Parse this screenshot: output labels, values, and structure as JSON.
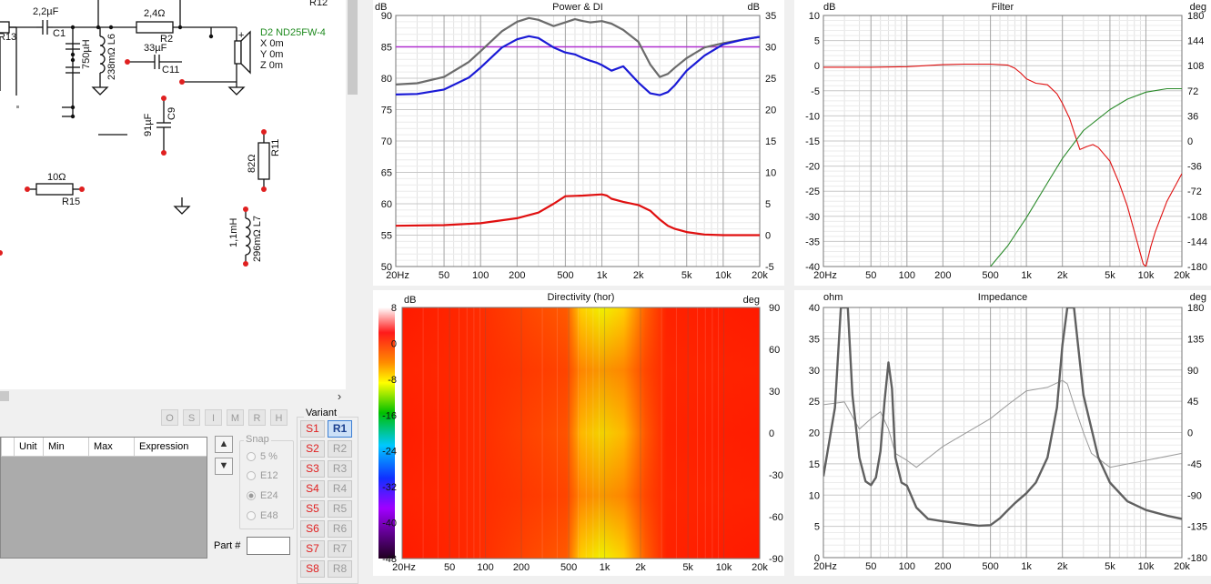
{
  "schematic": {
    "components": [
      {
        "id": "c1",
        "value": "2,2µF",
        "ref": "C1"
      },
      {
        "id": "r2",
        "value": "2,4Ω",
        "ref": "R2"
      },
      {
        "id": "l6",
        "value": "750µH",
        "ref": "238mΩ L6"
      },
      {
        "id": "c11",
        "value": "33µF",
        "ref": "C11"
      },
      {
        "id": "c9",
        "value": "91µF",
        "ref": "C9"
      },
      {
        "id": "r11",
        "value": "82Ω",
        "ref": "R11"
      },
      {
        "id": "r15",
        "value": "10Ω",
        "ref": "R15"
      },
      {
        "id": "l7",
        "value": "1,1mH",
        "ref": "296mΩ L7"
      }
    ],
    "r13_label": "R13",
    "r12_label": "R12",
    "driver": {
      "name": "D2 ND25FW-4",
      "x": "X 0m",
      "y": "Y 0m",
      "z": "Z 0m",
      "plus": "+"
    }
  },
  "scroll": {
    "chevron": "›"
  },
  "toolbar": {
    "buttons": [
      "O",
      "S",
      "I",
      "M",
      "R",
      "H"
    ]
  },
  "params_table": {
    "columns": [
      "Unit",
      "Min",
      "Max",
      "Expression"
    ]
  },
  "snap": {
    "title": "Snap",
    "options": [
      {
        "label": "5 %",
        "selected": false
      },
      {
        "label": "E12",
        "selected": false
      },
      {
        "label": "E24",
        "selected": true
      },
      {
        "label": "E48",
        "selected": false
      }
    ]
  },
  "part": {
    "label": "Part #",
    "value": ""
  },
  "variant": {
    "title": "Variant",
    "s_buttons": [
      "S1",
      "S2",
      "S3",
      "S4",
      "S5",
      "S6",
      "S7",
      "S8"
    ],
    "r_buttons": [
      "R1",
      "R2",
      "R3",
      "R4",
      "R5",
      "R6",
      "R7",
      "R8"
    ],
    "active": "R1"
  },
  "colors": {
    "accent_red": "#e02020",
    "active_blue": "#3c7fd4"
  },
  "graphs": {
    "freq_ticks": [
      20,
      50,
      100,
      200,
      500,
      1000,
      2000,
      5000,
      10000,
      20000
    ],
    "freq_labels": [
      "20Hz",
      "50",
      "100",
      "200",
      "500",
      "1k",
      "2k",
      "5k",
      "10k",
      "20k"
    ],
    "power": {
      "title": "Power & DI",
      "left_unit": "dB",
      "right_unit": "dB",
      "left_ticks": [
        "90",
        "85",
        "80",
        "75",
        "70",
        "65",
        "60",
        "55",
        "50"
      ],
      "right_ticks": [
        "35",
        "30",
        "25",
        "20",
        "15",
        "10",
        "5",
        "0",
        "-5"
      ]
    },
    "filter": {
      "title": "Filter",
      "left_unit": "dB",
      "right_unit": "deg",
      "left_ticks": [
        "10",
        "5",
        "0",
        "-5",
        "-10",
        "-15",
        "-20",
        "-25",
        "-30",
        "-35",
        "-40"
      ],
      "right_ticks": [
        "180",
        "144",
        "108",
        "72",
        "36",
        "0",
        "-36",
        "-72",
        "-108",
        "-144",
        "-180"
      ]
    },
    "directivity": {
      "title": "Directivity (hor)",
      "left_unit": "dB",
      "right_unit": "deg",
      "scale_ticks": [
        "8",
        "0",
        "-8",
        "-16",
        "-24",
        "-32",
        "-40",
        "-48"
      ],
      "right_ticks": [
        "90",
        "60",
        "30",
        "0",
        "-30",
        "-60",
        "-90"
      ]
    },
    "impedance": {
      "title": "Impedance",
      "left_unit": "ohm",
      "right_unit": "deg",
      "left_ticks": [
        "40",
        "35",
        "30",
        "25",
        "20",
        "15",
        "10",
        "5",
        "0"
      ],
      "right_ticks": [
        "180",
        "135",
        "90",
        "45",
        "0",
        "-45",
        "-90",
        "-135",
        "-180"
      ]
    }
  },
  "chart_data": [
    {
      "type": "line",
      "title": "Power & DI",
      "xlabel": "",
      "ylabel": "dB",
      "xscale": "log",
      "xlim": [
        20,
        20000
      ],
      "ylim": [
        50,
        90
      ],
      "y2lim": [
        -5,
        35
      ],
      "grid": true,
      "series": [
        {
          "color": "#6b6b6b",
          "x": [
            20,
            30,
            50,
            80,
            100,
            150,
            200,
            250,
            300,
            400,
            500,
            600,
            700,
            800,
            1000,
            1200,
            1500,
            2000,
            2500,
            3000,
            3500,
            4000,
            5000,
            7000,
            10000,
            15000,
            20000
          ],
          "y": [
            79,
            79.2,
            80.2,
            82.6,
            84.3,
            87.5,
            89,
            89.6,
            89.3,
            88.3,
            88.9,
            89.4,
            89.1,
            88.9,
            89.1,
            88.7,
            87.7,
            85.8,
            82.2,
            80.2,
            80.7,
            81.7,
            83.2,
            84.9,
            85.6,
            86.2,
            86.6
          ]
        },
        {
          "color": "#1a1ad6",
          "x": [
            20,
            30,
            50,
            80,
            100,
            150,
            200,
            250,
            300,
            400,
            500,
            600,
            700,
            800,
            900,
            1000,
            1200,
            1500,
            2000,
            2500,
            3000,
            3500,
            4000,
            5000,
            7000,
            10000,
            15000,
            20000
          ],
          "y": [
            77.4,
            77.5,
            78.2,
            80.1,
            81.7,
            84.9,
            86.2,
            86.7,
            86.4,
            84.9,
            84.1,
            83.8,
            83.2,
            82.8,
            82.5,
            82.1,
            81.2,
            81.9,
            79.3,
            77.6,
            77.3,
            77.8,
            78.9,
            81.2,
            83.6,
            85.4,
            86.2,
            86.6
          ]
        },
        {
          "color": "#e01010",
          "axis": "right",
          "x": [
            20,
            50,
            100,
            200,
            300,
            400,
            500,
            700,
            1000,
            1100,
            1200,
            1500,
            2000,
            2500,
            3000,
            3500,
            4000,
            5000,
            7000,
            10000,
            20000
          ],
          "y": [
            1.5,
            1.6,
            1.9,
            2.7,
            3.6,
            5,
            6.2,
            6.3,
            6.5,
            6.3,
            5.8,
            5.3,
            4.8,
            3.9,
            2.5,
            1.5,
            1,
            0.5,
            0.1,
            0,
            0
          ]
        },
        {
          "color": "#b030d0",
          "x": [
            20,
            20000
          ],
          "y": [
            85,
            85
          ]
        }
      ]
    },
    {
      "type": "line",
      "title": "Filter",
      "xlabel": "",
      "ylabel": "dB",
      "xscale": "log",
      "xlim": [
        20,
        20000
      ],
      "ylim": [
        -40,
        10
      ],
      "y2lim": [
        -180,
        180
      ],
      "grid": true,
      "series": [
        {
          "color": "#e01010",
          "x": [
            20,
            50,
            100,
            200,
            300,
            500,
            700,
            800,
            900,
            1000,
            1200,
            1500,
            1800,
            2000,
            2300,
            2500,
            2800,
            3200,
            3600,
            4000,
            5000,
            6000,
            7000,
            8000,
            9000,
            9500,
            10000,
            10500,
            11000,
            12000,
            15000,
            20000
          ],
          "y": [
            -0.3,
            -0.3,
            -0.2,
            0.2,
            0.3,
            0.3,
            0.1,
            -0.5,
            -1.5,
            -2.6,
            -3.5,
            -3.8,
            -5.6,
            -7.5,
            -10.5,
            -13.2,
            -16.7,
            -16.1,
            -15.7,
            -16.3,
            -19,
            -23.5,
            -28,
            -33,
            -37.5,
            -39.5,
            -40,
            -38,
            -36,
            -33,
            -27,
            -21.5
          ]
        },
        {
          "color": "#2a8a2a",
          "axis": "right",
          "x": [
            500,
            700,
            1000,
            1500,
            2000,
            3000,
            5000,
            7000,
            10000,
            15000,
            20000
          ],
          "y": [
            -180,
            -150,
            -110,
            -60,
            -25,
            15,
            45,
            60,
            70,
            75,
            75
          ]
        }
      ]
    },
    {
      "type": "heatmap",
      "title": "Directivity (hor)",
      "xlabel": "",
      "ylabel": "dB",
      "xscale": "log",
      "xlim": [
        20,
        20000
      ],
      "ylim": [
        -90,
        90
      ],
      "zlim": [
        -48,
        8
      ]
    },
    {
      "type": "line",
      "title": "Impedance",
      "xlabel": "",
      "ylabel": "ohm",
      "xscale": "log",
      "xlim": [
        20,
        20000
      ],
      "ylim": [
        0,
        40
      ],
      "y2lim": [
        -180,
        180
      ],
      "grid": true,
      "series": [
        {
          "color": "#606060",
          "x": [
            20,
            25,
            28,
            32,
            35,
            40,
            45,
            50,
            55,
            60,
            65,
            70,
            75,
            80,
            90,
            100,
            120,
            150,
            200,
            300,
            400,
            500,
            600,
            700,
            800,
            1000,
            1200,
            1500,
            1800,
            2000,
            2200,
            2500,
            3000,
            4000,
            5000,
            7000,
            10000,
            15000,
            20000
          ],
          "y": [
            13,
            24,
            40,
            40,
            26,
            16,
            12.2,
            11.6,
            12.8,
            17,
            25,
            31.2,
            27,
            16,
            12,
            11.5,
            8,
            6.2,
            5.8,
            5.4,
            5.1,
            5.2,
            6.3,
            7.6,
            8.7,
            10.3,
            12,
            16,
            24,
            34,
            40,
            40,
            26,
            16,
            12,
            9,
            7.6,
            6.7,
            6.2
          ]
        },
        {
          "color": "#9a9a9a",
          "axis": "right",
          "x": [
            20,
            30,
            40,
            50,
            60,
            70,
            80,
            100,
            120,
            200,
            500,
            700,
            1000,
            1500,
            2000,
            2200,
            2500,
            3000,
            3500,
            5000,
            10000,
            20000
          ],
          "y": [
            40,
            44,
            5,
            20,
            30,
            5,
            -30,
            -40,
            -50,
            -20,
            20,
            40,
            60,
            65,
            75,
            70,
            40,
            0,
            -30,
            -50,
            -40,
            -30
          ]
        }
      ]
    }
  ]
}
